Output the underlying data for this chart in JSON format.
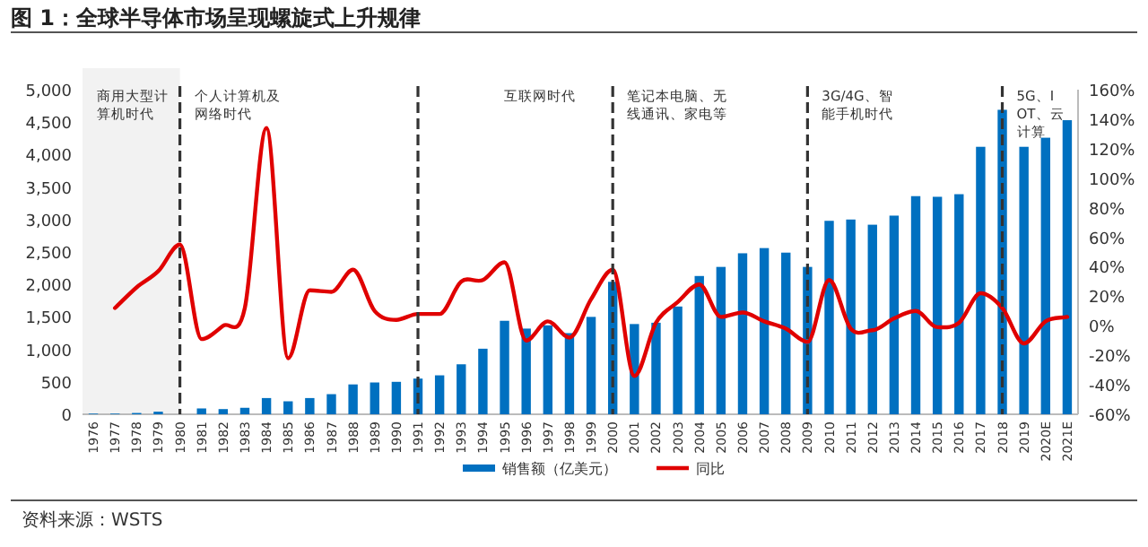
{
  "chart_data": {
    "type": "bar",
    "title": "图 1：全球半导体市场呈现螺旋式上升规律",
    "categories": [
      "1976",
      "1977",
      "1978",
      "1979",
      "1980",
      "1981",
      "1982",
      "1983",
      "1984",
      "1985",
      "1986",
      "1987",
      "1988",
      "1989",
      "1990",
      "1991",
      "1992",
      "1993",
      "1994",
      "1995",
      "1996",
      "1997",
      "1998",
      "1999",
      "2000",
      "2001",
      "2002",
      "2003",
      "2004",
      "2005",
      "2006",
      "2007",
      "2008",
      "2009",
      "2010",
      "2011",
      "2012",
      "2013",
      "2014",
      "2015",
      "2016",
      "2017",
      "2018",
      "2019",
      "2020E",
      "2021E"
    ],
    "series": [
      {
        "name": "销售额（亿美元）",
        "color": "#0070c0",
        "values": [
          10,
          10,
          20,
          40,
          null,
          90,
          80,
          100,
          250,
          200,
          250,
          310,
          460,
          490,
          500,
          550,
          600,
          770,
          1010,
          1440,
          1320,
          1370,
          1250,
          1500,
          2040,
          1390,
          1410,
          1660,
          2130,
          2270,
          2480,
          2560,
          2490,
          2270,
          2980,
          3000,
          2920,
          3060,
          3360,
          3350,
          3390,
          4120,
          4690,
          4120,
          4260,
          4530
        ]
      },
      {
        "name": "同比",
        "type": "line",
        "axis": "y2",
        "color": "#e00000",
        "values": [
          null,
          12,
          26,
          37,
          55,
          -9,
          0,
          12,
          134,
          -22,
          24,
          23,
          38,
          10,
          4,
          8,
          8,
          30,
          31,
          43,
          -10,
          3,
          -8,
          18,
          38,
          -34,
          2,
          16,
          28,
          6,
          9,
          3,
          -2,
          -11,
          31,
          -2,
          -3,
          5,
          10,
          -1,
          2,
          22,
          12,
          -12,
          3,
          6
        ]
      }
    ],
    "ylim": [
      0,
      5000
    ],
    "yticks": [
      0,
      500,
      {
        "value": 1000,
        "label": "1,000"
      },
      {
        "value": 1500,
        "label": "1,500"
      },
      {
        "value": 2000,
        "label": "2,000"
      },
      {
        "value": 2500,
        "label": "2,500"
      },
      {
        "value": 3000,
        "label": "3,000"
      },
      {
        "value": 3500,
        "label": "3,500"
      },
      {
        "value": 4000,
        "label": "4,000"
      },
      {
        "value": 4500,
        "label": "4,500"
      },
      {
        "value": 5000,
        "label": "5,000"
      }
    ],
    "y2lim": [
      -60,
      160
    ],
    "y2ticks": [
      {
        "value": -60,
        "label": "-60%"
      },
      {
        "value": -40,
        "label": "-40%"
      },
      {
        "value": -20,
        "label": "-20%"
      },
      {
        "value": 0,
        "label": "0%"
      },
      {
        "value": 20,
        "label": "20%"
      },
      {
        "value": 40,
        "label": "40%"
      },
      {
        "value": 60,
        "label": "60%"
      },
      {
        "value": 80,
        "label": "80%"
      },
      {
        "value": 100,
        "label": "100%"
      },
      {
        "value": 120,
        "label": "120%"
      },
      {
        "value": 140,
        "label": "140%"
      },
      {
        "value": 160,
        "label": "160%"
      }
    ],
    "bands": [
      {
        "axis": "x",
        "from": "1976",
        "to": "1980",
        "color": "#f2f2f2"
      }
    ],
    "ref_lines": [
      {
        "axis": "x",
        "value": "1980",
        "color": "#333333",
        "line_style": "dashed"
      },
      {
        "axis": "x",
        "value": "1991",
        "color": "#333333",
        "line_style": "dashed"
      },
      {
        "axis": "x",
        "value": "2000",
        "color": "#333333",
        "line_style": "dashed"
      },
      {
        "axis": "x",
        "value": "2009",
        "color": "#333333",
        "line_style": "dashed"
      },
      {
        "axis": "x",
        "value": "2018",
        "color": "#333333",
        "line_style": "dashed"
      }
    ],
    "annotations": [
      "商用大型计算机时代",
      "个人计算机及网络时代",
      "互联网时代",
      "笔记本电脑、无线通讯、家电等",
      "3G/4G、智能手机时代",
      "5G、IOT、云计算",
      "资料来源：WSTS"
    ],
    "legend": "bottom",
    "grid": false
  }
}
